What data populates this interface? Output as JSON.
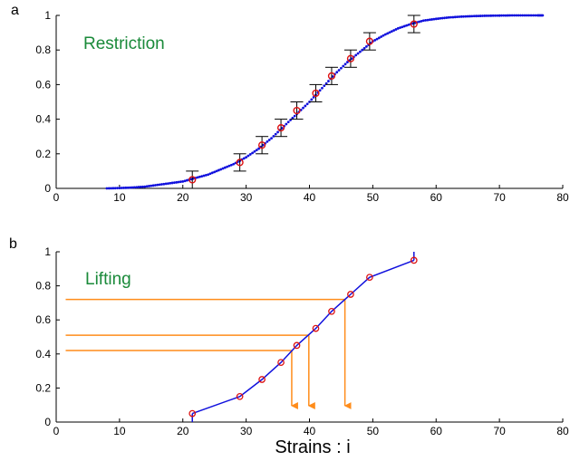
{
  "colors": {
    "curve": "#1010dd",
    "marker": "#dd1111",
    "errorbar": "#000000",
    "guide": "#ff8c1a",
    "label": "#1a8a3a",
    "axis": "#000000"
  },
  "figure": {
    "xlabel": "Strains : i"
  },
  "chart_data": [
    {
      "type": "scatter",
      "panel_label": "a",
      "annotation": "Restriction",
      "xlim": [
        0,
        80
      ],
      "ylim": [
        0,
        1
      ],
      "xticks": [
        "0",
        "10",
        "20",
        "30",
        "40",
        "50",
        "60",
        "70",
        "80"
      ],
      "yticks": [
        "0",
        "0.2",
        "0.4",
        "0.6",
        "0.8",
        "1"
      ],
      "grid": false,
      "series": [
        {
          "style": "dotted-curve",
          "color": "#1010dd",
          "x": [
            8,
            10,
            12,
            14,
            16,
            18,
            20,
            22,
            24,
            26,
            28,
            30,
            32,
            34,
            36,
            38,
            40,
            42,
            44,
            46,
            48,
            50,
            52,
            54,
            56,
            58,
            60,
            62,
            64,
            66,
            68,
            70,
            72,
            74,
            76,
            77
          ],
          "y": [
            0,
            0.002,
            0.005,
            0.01,
            0.02,
            0.03,
            0.04,
            0.06,
            0.08,
            0.11,
            0.14,
            0.18,
            0.23,
            0.29,
            0.36,
            0.43,
            0.5,
            0.58,
            0.66,
            0.73,
            0.79,
            0.85,
            0.89,
            0.925,
            0.95,
            0.97,
            0.98,
            0.988,
            0.993,
            0.996,
            0.998,
            0.999,
            1,
            1,
            1,
            1
          ]
        },
        {
          "style": "markers-with-errorbars",
          "color": "#dd1111",
          "x": [
            21.5,
            29,
            32.5,
            35.5,
            38,
            41,
            43.5,
            46.5,
            49.5,
            56.5
          ],
          "y": [
            0.05,
            0.15,
            0.25,
            0.35,
            0.45,
            0.55,
            0.65,
            0.75,
            0.85,
            0.95
          ],
          "err": [
            0.05,
            0.05,
            0.05,
            0.05,
            0.05,
            0.05,
            0.05,
            0.05,
            0.05,
            0.05
          ]
        }
      ]
    },
    {
      "type": "line",
      "panel_label": "b",
      "annotation": "Lifting",
      "xlim": [
        0,
        80
      ],
      "ylim": [
        0,
        1
      ],
      "xticks": [
        "0",
        "10",
        "20",
        "30",
        "40",
        "50",
        "60",
        "70",
        "80"
      ],
      "yticks": [
        "0",
        "0.2",
        "0.4",
        "0.6",
        "0.8",
        "1"
      ],
      "grid": false,
      "series": [
        {
          "style": "line-with-markers",
          "color": "#1010dd",
          "x": [
            21.5,
            29,
            32.5,
            35.5,
            38,
            41,
            43.5,
            46.5,
            49.5,
            56.5
          ],
          "y": [
            0.05,
            0.15,
            0.25,
            0.35,
            0.45,
            0.55,
            0.65,
            0.75,
            0.85,
            0.95
          ]
        }
      ],
      "guides": [
        {
          "y": 0.42,
          "x": 37.2
        },
        {
          "y": 0.51,
          "x": 39.9
        },
        {
          "y": 0.72,
          "x": 45.6
        }
      ]
    }
  ]
}
